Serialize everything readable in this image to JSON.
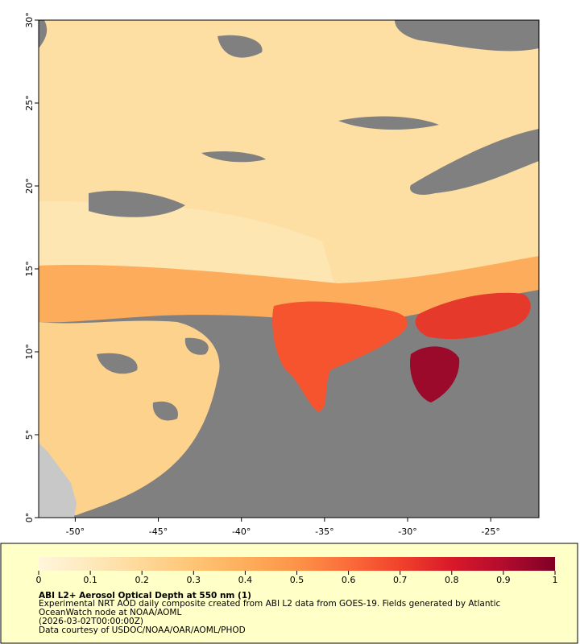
{
  "map": {
    "lonlim": [
      -52.2,
      -22.1
    ],
    "latlim": [
      0,
      30
    ],
    "lonticks": [
      {
        "value": -50,
        "label": "-50°"
      },
      {
        "value": -45,
        "label": "-45°"
      },
      {
        "value": -40,
        "label": "-40°"
      },
      {
        "value": -35,
        "label": "-35°"
      },
      {
        "value": -30,
        "label": "-30°"
      },
      {
        "value": -25,
        "label": "-25°"
      }
    ],
    "latticks": [
      {
        "value": 0,
        "label": "0°"
      },
      {
        "value": 5,
        "label": "5°"
      },
      {
        "value": 10,
        "label": "10°"
      },
      {
        "value": 15,
        "label": "15°"
      },
      {
        "value": 20,
        "label": "20°"
      },
      {
        "value": 25,
        "label": "25°"
      },
      {
        "value": 30,
        "label": "30°"
      }
    ]
  },
  "colorbar": {
    "lim": [
      0,
      1
    ],
    "ticks": [
      0,
      0.1,
      0.2,
      0.3,
      0.4,
      0.5,
      0.6,
      0.7,
      0.8,
      0.9,
      1
    ],
    "colormap": [
      "#fff6dc",
      "#fee9bc",
      "#fed898",
      "#fec574",
      "#fdae5c",
      "#fc9348",
      "#fb6c3a",
      "#f0422b",
      "#d8192a",
      "#b20c2d",
      "#800026"
    ]
  },
  "caption": {
    "title": "ABI L2+ Aerosol Optical Depth at 550 nm (1)",
    "lines": [
      "Experimental NRT AOD daily composite created from ABI L2 data from GOES-19. Fields generated by Atlantic",
      "OceanWatch node at NOAA/AOML",
      "(2026-03-02T00:00:00Z)",
      "Data courtesy of USDOC/NOAA/OAR/AOML/PHOD"
    ]
  }
}
